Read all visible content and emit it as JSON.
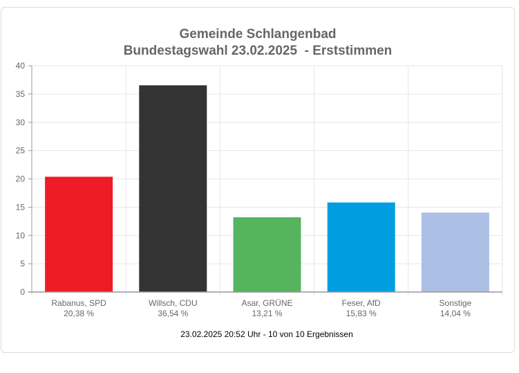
{
  "chart_data": {
    "type": "bar",
    "title": "Gemeinde Schlangenbad",
    "subtitle": "Bundestagswahl 23.02.2025  - Erststimmen",
    "categories": [
      "Rabanus, SPD",
      "Willsch, CDU",
      "Asar, GRÜNE",
      "Feser, AfD",
      "Sonstige"
    ],
    "values": [
      20.38,
      36.54,
      13.21,
      15.83,
      14.04
    ],
    "value_labels": [
      "20,38 %",
      "36,54 %",
      "13,21 %",
      "15,83 %",
      "14,04 %"
    ],
    "colors": [
      "#ee1c25",
      "#333333",
      "#56b45f",
      "#009ee0",
      "#acbfe4"
    ],
    "ylim": [
      0,
      40
    ],
    "yticks": [
      "0",
      "5",
      "10",
      "15",
      "20",
      "25",
      "30",
      "35",
      "40"
    ],
    "grid": true,
    "footer": "23.02.2025 20:52 Uhr - 10 von 10 Ergebnissen"
  }
}
